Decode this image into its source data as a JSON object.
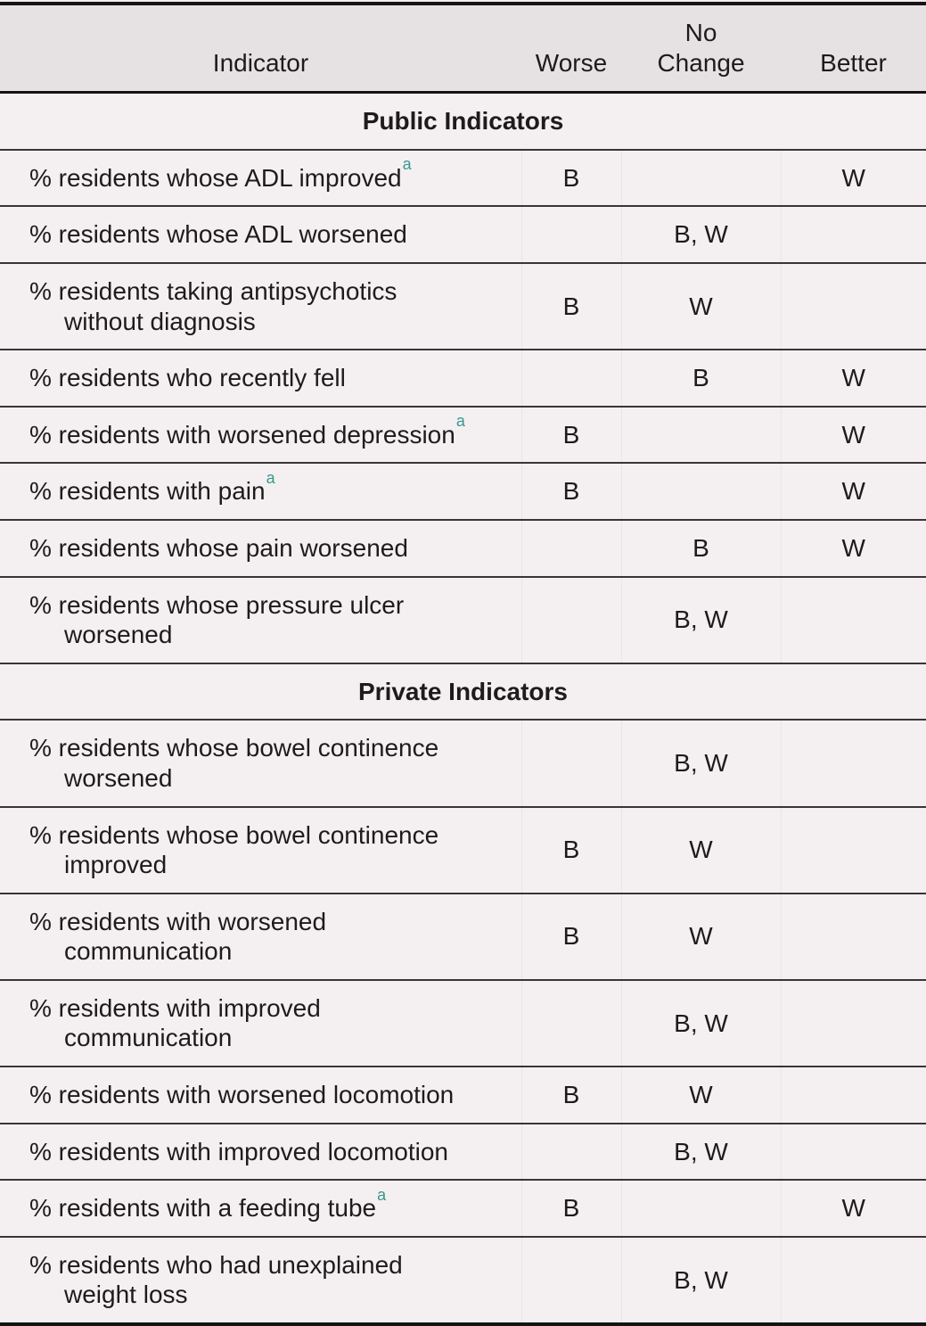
{
  "header": {
    "indicator": "Indicator",
    "worse": "Worse",
    "no_change": "No\nChange",
    "better": "Better"
  },
  "sections": [
    "Public Indicators",
    "Private Indicators"
  ],
  "footnote_marker_color": "#3a968e",
  "rows": [
    {
      "indicator": "% residents whose ADL improved",
      "sup": "a",
      "worse": "B",
      "no_change": "",
      "better": "W"
    },
    {
      "indicator": "% residents whose ADL worsened",
      "sup": "",
      "worse": "",
      "no_change": "B, W",
      "better": ""
    },
    {
      "indicator": "% residents taking antipsychotics\nwithout diagnosis",
      "sup": "",
      "worse": "B",
      "no_change": "W",
      "better": ""
    },
    {
      "indicator": "% residents who recently fell",
      "sup": "",
      "worse": "",
      "no_change": "B",
      "better": "W"
    },
    {
      "indicator": "% residents with worsened depression",
      "sup": "a",
      "worse": "B",
      "no_change": "",
      "better": "W"
    },
    {
      "indicator": "% residents with pain",
      "sup": "a",
      "worse": "B",
      "no_change": "",
      "better": "W"
    },
    {
      "indicator": "% residents whose pain worsened",
      "sup": "",
      "worse": "",
      "no_change": "B",
      "better": "W"
    },
    {
      "indicator": "% residents whose pressure ulcer\nworsened",
      "sup": "",
      "worse": "",
      "no_change": "B, W",
      "better": ""
    },
    {
      "indicator": "% residents whose bowel continence\nworsened",
      "sup": "",
      "worse": "",
      "no_change": "B, W",
      "better": ""
    },
    {
      "indicator": "% residents whose bowel continence\nimproved",
      "sup": "",
      "worse": "B",
      "no_change": "W",
      "better": ""
    },
    {
      "indicator": "% residents with worsened\ncommunication",
      "sup": "",
      "worse": "B",
      "no_change": "W",
      "better": ""
    },
    {
      "indicator": "% residents with improved\ncommunication",
      "sup": "",
      "worse": "",
      "no_change": "B, W",
      "better": ""
    },
    {
      "indicator": "% residents with worsened locomotion",
      "sup": "",
      "worse": "B",
      "no_change": "W",
      "better": ""
    },
    {
      "indicator": "% residents with improved locomotion",
      "sup": "",
      "worse": "",
      "no_change": "B, W",
      "better": ""
    },
    {
      "indicator": "% residents with a feeding tube",
      "sup": "a",
      "worse": "B",
      "no_change": "",
      "better": "W"
    },
    {
      "indicator": "% residents who had unexplained\nweight loss",
      "sup": "",
      "worse": "",
      "no_change": "B, W",
      "better": ""
    }
  ]
}
